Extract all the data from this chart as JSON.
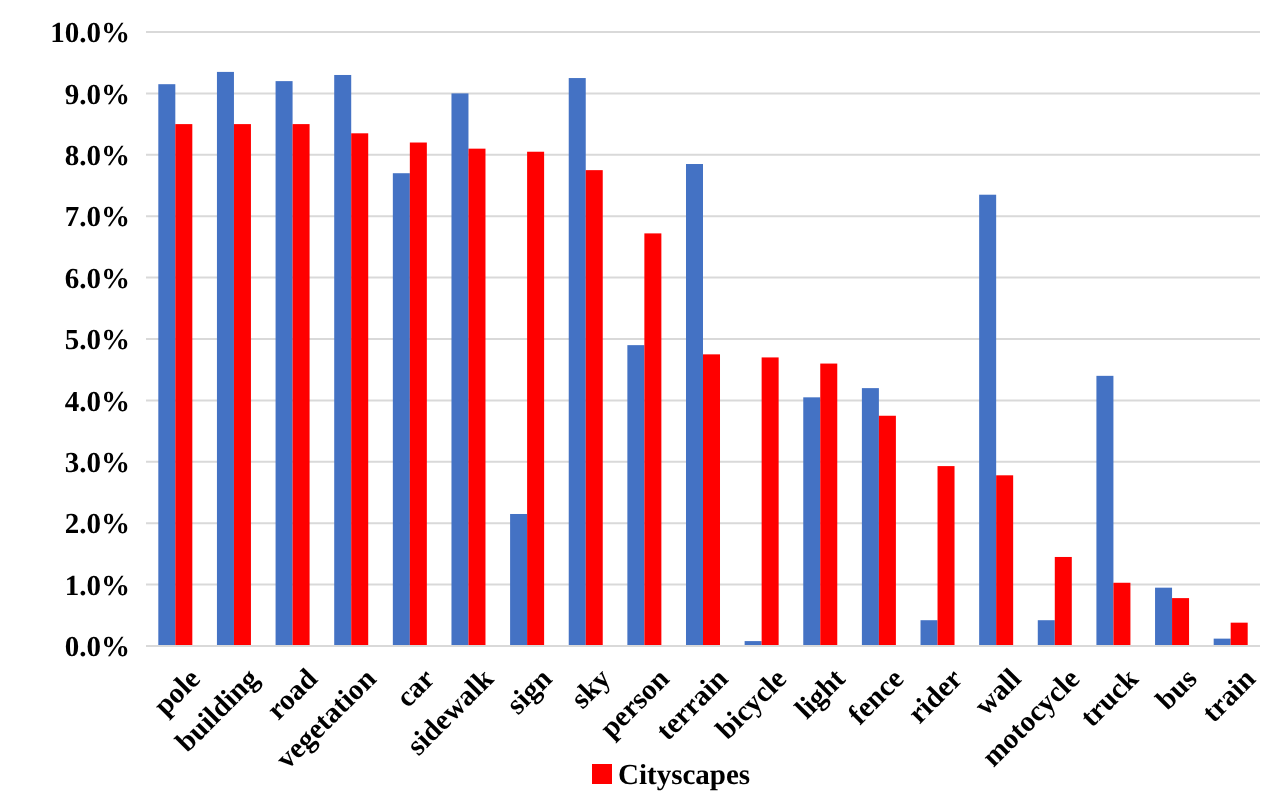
{
  "chart_data": {
    "type": "bar",
    "categories": [
      "pole",
      "building",
      "road",
      "vegetation",
      "car",
      "sidewalk",
      "sign",
      "sky",
      "person",
      "terrain",
      "bicycle",
      "light",
      "fence",
      "rider",
      "wall",
      "motocycle",
      "truck",
      "bus",
      "train"
    ],
    "series": [
      {
        "color": "#4472c4",
        "values": [
          9.15,
          9.35,
          9.2,
          9.3,
          7.7,
          9.0,
          2.15,
          9.25,
          4.9,
          7.85,
          0.08,
          4.05,
          4.2,
          0.42,
          7.35,
          0.42,
          4.4,
          0.95,
          0.12
        ]
      },
      {
        "name": "Cityscapes",
        "color": "#ff0000",
        "values": [
          8.5,
          8.5,
          8.5,
          8.35,
          8.2,
          8.1,
          8.05,
          7.75,
          6.72,
          4.75,
          4.7,
          4.6,
          3.75,
          2.93,
          2.78,
          1.45,
          1.03,
          0.78,
          0.38
        ]
      }
    ],
    "ylim": [
      0,
      10
    ],
    "yticks": [
      {
        "value": 0,
        "label": "0.0%"
      },
      {
        "value": 1,
        "label": "1.0%"
      },
      {
        "value": 2,
        "label": "2.0%"
      },
      {
        "value": 3,
        "label": "3.0%"
      },
      {
        "value": 4,
        "label": "4.0%"
      },
      {
        "value": 5,
        "label": "5.0%"
      },
      {
        "value": 6,
        "label": "6.0%"
      },
      {
        "value": 7,
        "label": "7.0%"
      },
      {
        "value": 8,
        "label": "8.0%"
      },
      {
        "value": 9,
        "label": "9.0%"
      },
      {
        "value": 10,
        "label": "10.0%"
      }
    ],
    "grid": "y",
    "legend": "bottom"
  }
}
